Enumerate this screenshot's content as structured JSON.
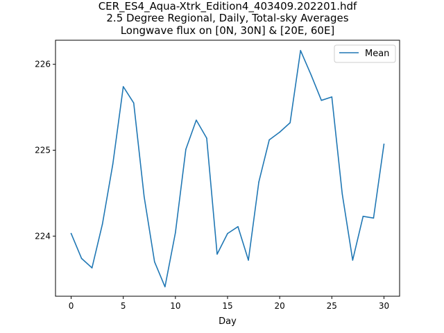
{
  "chart_data": {
    "type": "line",
    "title_lines": [
      "CER_ES4_Aqua-Xtrk_Edition4_403409.202201.hdf",
      "2.5 Degree Regional, Daily, Total-sky Averages",
      "Longwave flux on [0N, 30N] & [20E, 60E]"
    ],
    "xlabel": "Day",
    "ylabel": "",
    "x_ticks": [
      0,
      5,
      10,
      15,
      20,
      25,
      30
    ],
    "y_ticks": [
      224,
      225,
      226
    ],
    "xlim": [
      -1.5,
      31.5
    ],
    "ylim": [
      223.3,
      226.28
    ],
    "grid": false,
    "legend_position": "top-right",
    "series": [
      {
        "name": "Mean",
        "color": "#1f77b4",
        "x": [
          0,
          1,
          2,
          3,
          4,
          5,
          6,
          7,
          8,
          9,
          10,
          11,
          12,
          13,
          14,
          15,
          16,
          17,
          18,
          19,
          20,
          21,
          22,
          23,
          24,
          25,
          26,
          27,
          28,
          29,
          30
        ],
        "values": [
          224.03,
          223.74,
          223.63,
          224.14,
          224.84,
          225.74,
          225.55,
          224.46,
          223.7,
          223.41,
          224.04,
          225.01,
          225.35,
          225.14,
          223.79,
          224.03,
          224.11,
          223.72,
          224.63,
          225.12,
          225.21,
          225.32,
          226.16,
          225.88,
          225.58,
          225.62,
          224.49,
          223.72,
          224.23,
          224.21,
          225.07
        ]
      }
    ]
  }
}
